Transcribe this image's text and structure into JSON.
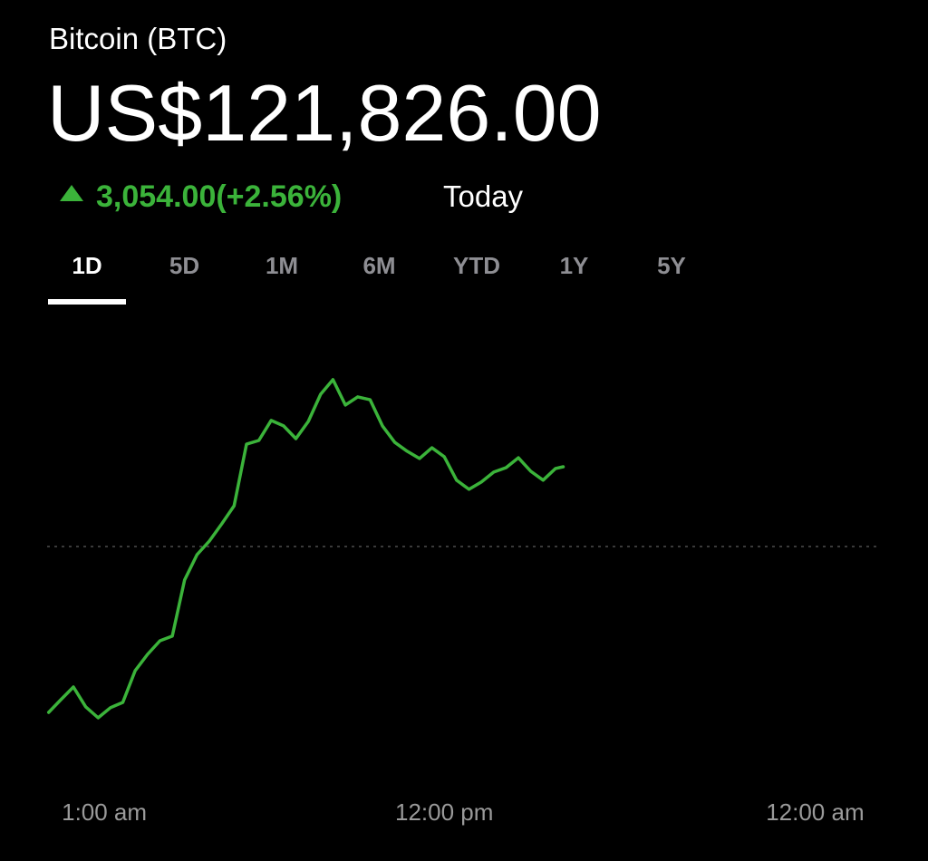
{
  "header": {
    "title": "Bitcoin (BTC)",
    "price": "US$121,826.00",
    "change": "3,054.00(+2.56%)",
    "period": "Today"
  },
  "tabs": {
    "items": [
      "1D",
      "5D",
      "1M",
      "6M",
      "YTD",
      "1Y",
      "5Y"
    ],
    "selected": 0
  },
  "chart_data": {
    "type": "line",
    "x": [
      -0.8,
      -0.4,
      0.0,
      0.4,
      0.8,
      1.2,
      1.6,
      2.0,
      2.4,
      2.8,
      3.2,
      3.6,
      4.0,
      4.4,
      4.8,
      5.2,
      5.6,
      6.0,
      6.4,
      6.8,
      7.2,
      7.6,
      8.0,
      8.4,
      8.8,
      9.2,
      9.6,
      10.0,
      10.4,
      10.8,
      11.2,
      11.6,
      12.0,
      12.4,
      12.8,
      13.2,
      13.6,
      14.0,
      14.4,
      14.8,
      15.2,
      15.6,
      15.85
    ],
    "series": [
      {
        "color": "#3bb33a",
        "values": [
          112420,
          112910,
          113390,
          112630,
          112210,
          112600,
          112800,
          114020,
          114640,
          115160,
          115340,
          117490,
          118460,
          118980,
          119640,
          120330,
          122690,
          122830,
          123600,
          123390,
          122900,
          123560,
          124600,
          125160,
          124190,
          124500,
          124390,
          123390,
          122760,
          122420,
          122140,
          122550,
          122210,
          121310,
          120960,
          121240,
          121620,
          121790,
          122170,
          121650,
          121310,
          121760,
          121826
        ]
      }
    ],
    "baseline": 118772,
    "xlim": [
      -0.85,
      26.07
    ],
    "ylim": [
      111240,
      126510
    ],
    "xticks": [
      {
        "value": 1,
        "label": "1:00 am"
      },
      {
        "value": 12,
        "label": "12:00 pm"
      },
      {
        "value": 24,
        "label": "12:00 am"
      }
    ]
  }
}
